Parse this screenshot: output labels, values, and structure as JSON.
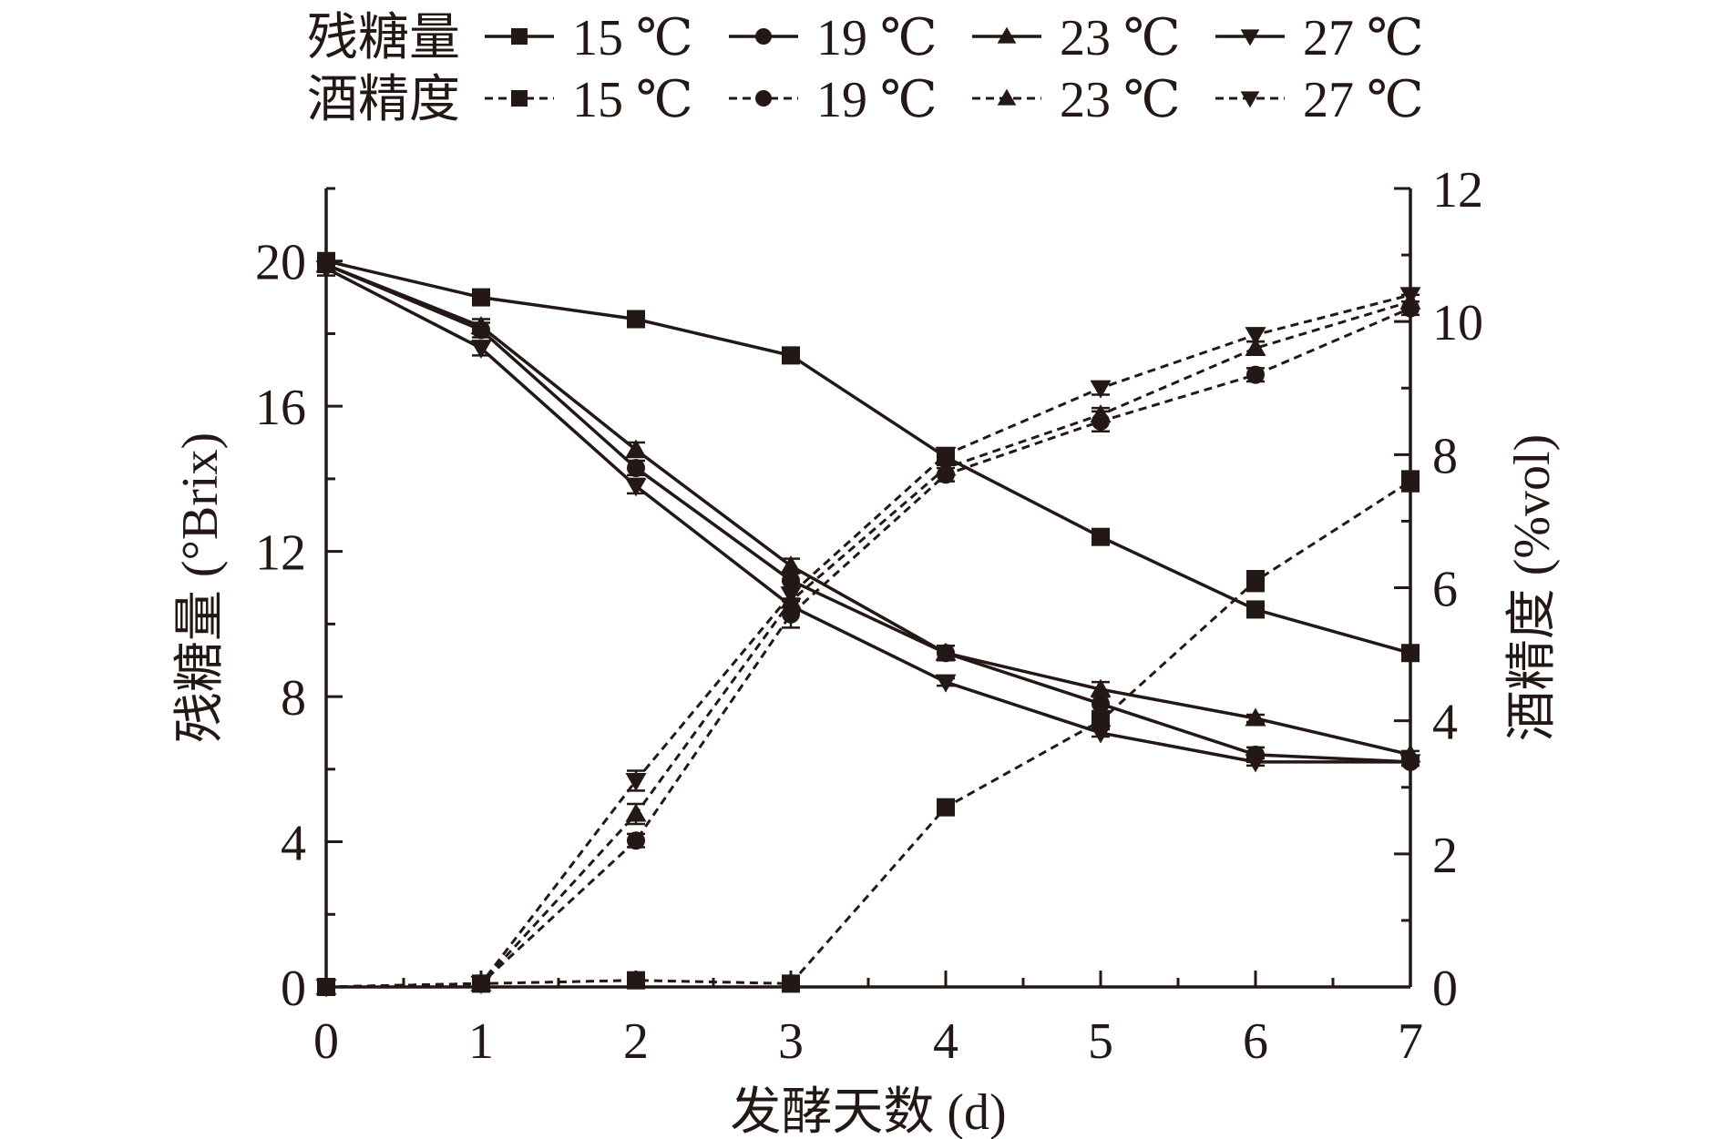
{
  "chart_data": {
    "type": "line",
    "xlabel": "发酵天数 (d)",
    "ylabel_left": "残糖量 (°Brix)",
    "ylabel_right": "酒精度 (%vol)",
    "x": [
      0,
      1,
      2,
      3,
      4,
      5,
      6,
      7
    ],
    "x_ticks": [
      "0",
      "1",
      "2",
      "3",
      "4",
      "5",
      "6",
      "7"
    ],
    "xlim": [
      0,
      7
    ],
    "ylim_left": [
      0,
      22
    ],
    "yticks_left": [
      0,
      4,
      8,
      12,
      16,
      20
    ],
    "yticks_left_labels": [
      "0",
      "4",
      "8",
      "12",
      "16",
      "20"
    ],
    "ylim_right": [
      0,
      12
    ],
    "yticks_right": [
      0,
      2,
      4,
      6,
      8,
      10,
      12
    ],
    "yticks_right_labels": [
      "0",
      "2",
      "4",
      "6",
      "8",
      "10",
      "12"
    ],
    "grid": false,
    "legend_position": "top",
    "legend_groups": [
      {
        "label": "残糖量",
        "style": "solid"
      },
      {
        "label": "酒精度",
        "style": "dashed"
      }
    ],
    "series": [
      {
        "group": "残糖量",
        "name": "15 ℃",
        "axis": "left",
        "marker": "square",
        "style": "solid",
        "values": [
          20.0,
          19.0,
          18.4,
          17.4,
          14.6,
          12.4,
          10.4,
          9.2
        ],
        "errors": [
          0.2,
          0.2,
          0.1,
          0.1,
          0.2,
          0.1,
          0.1,
          0.2
        ]
      },
      {
        "group": "残糖量",
        "name": "19 ℃",
        "axis": "left",
        "marker": "circle",
        "style": "solid",
        "values": [
          19.9,
          18.1,
          14.3,
          11.2,
          9.2,
          7.8,
          6.4,
          6.2
        ],
        "errors": [
          0.2,
          0.2,
          0.2,
          0.2,
          0.2,
          0.2,
          0.2,
          0.1
        ]
      },
      {
        "group": "残糖量",
        "name": "23 ℃",
        "axis": "left",
        "marker": "triangle-up",
        "style": "solid",
        "values": [
          19.9,
          18.2,
          14.8,
          11.6,
          9.2,
          8.2,
          7.4,
          6.4
        ],
        "errors": [
          0.2,
          0.2,
          0.2,
          0.2,
          0.2,
          0.2,
          0.1,
          0.1
        ]
      },
      {
        "group": "残糖量",
        "name": "27 ℃",
        "axis": "left",
        "marker": "triangle-down",
        "style": "solid",
        "values": [
          19.8,
          17.6,
          13.8,
          10.5,
          8.4,
          7.0,
          6.2,
          6.2
        ],
        "errors": [
          0.2,
          0.2,
          0.2,
          0.2,
          0.1,
          0.1,
          0.1,
          0.1
        ]
      },
      {
        "group": "酒精度",
        "name": "15 ℃",
        "axis": "right",
        "marker": "square",
        "style": "dashed",
        "values": [
          0.0,
          0.05,
          0.1,
          0.05,
          2.7,
          4.0,
          6.1,
          7.6
        ],
        "errors": [
          0.02,
          0.05,
          0.1,
          0.05,
          0.1,
          0.1,
          0.15,
          0.15
        ]
      },
      {
        "group": "酒精度",
        "name": "19 ℃",
        "axis": "right",
        "marker": "circle",
        "style": "dashed",
        "values": [
          0.0,
          0.05,
          2.2,
          5.6,
          7.7,
          8.5,
          9.2,
          10.2
        ],
        "errors": [
          0.02,
          0.05,
          0.1,
          0.2,
          0.1,
          0.15,
          0.1,
          0.1
        ]
      },
      {
        "group": "酒精度",
        "name": "23 ℃",
        "axis": "right",
        "marker": "triangle-up",
        "style": "dashed",
        "values": [
          0.0,
          0.05,
          2.6,
          5.8,
          7.8,
          8.6,
          9.6,
          10.3
        ],
        "errors": [
          0.02,
          0.05,
          0.15,
          0.2,
          0.1,
          0.1,
          0.1,
          0.1
        ]
      },
      {
        "group": "酒精度",
        "name": "27 ℃",
        "axis": "right",
        "marker": "triangle-down",
        "style": "dashed",
        "values": [
          0.0,
          0.05,
          3.1,
          5.9,
          8.0,
          9.0,
          9.8,
          10.4
        ],
        "errors": [
          0.02,
          0.05,
          0.15,
          0.2,
          0.1,
          0.1,
          0.1,
          0.1
        ]
      }
    ],
    "colors": {
      "ink": "#231815"
    }
  }
}
